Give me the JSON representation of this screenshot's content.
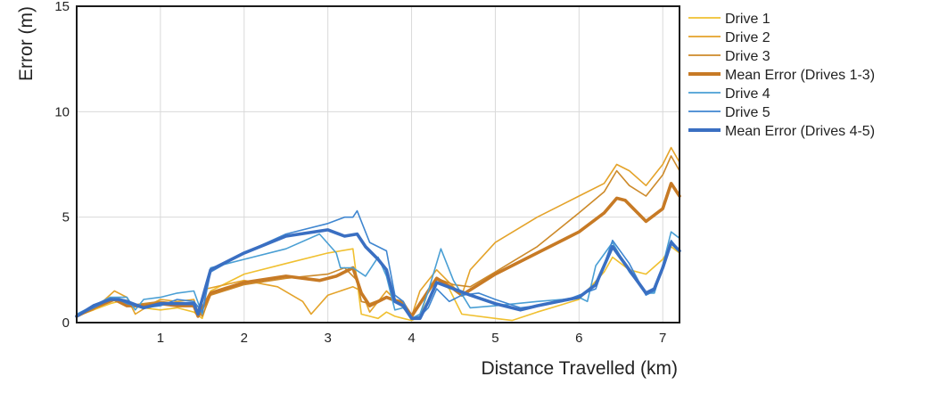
{
  "chart_data": {
    "type": "line",
    "title": "",
    "xlabel": "Distance Travelled (km)",
    "ylabel": "Error (m)",
    "xlim": [
      0,
      7.2
    ],
    "ylim": [
      0,
      15
    ],
    "xticks": [
      1,
      2,
      3,
      4,
      5,
      6,
      7
    ],
    "yticks": [
      0,
      5,
      10,
      15
    ],
    "grid": true,
    "legend_position": "right",
    "series": [
      {
        "name": "Drive 1",
        "color": "#f0c030",
        "line_width": "thin",
        "x": [
          0,
          0.2,
          0.4,
          0.5,
          0.6,
          0.8,
          1.0,
          1.2,
          1.4,
          1.5,
          1.6,
          2.0,
          2.5,
          3.0,
          3.3,
          3.4,
          3.5,
          3.6,
          3.7,
          3.8,
          3.9,
          4.0,
          4.1,
          4.2,
          4.3,
          4.45,
          4.6,
          5.0,
          5.2,
          5.5,
          6.0,
          6.3,
          6.4,
          6.6,
          6.8,
          7.0,
          7.1,
          7.2
        ],
        "y": [
          0.3,
          0.6,
          0.9,
          1.0,
          0.8,
          0.7,
          0.6,
          0.7,
          0.5,
          0.2,
          1.5,
          2.3,
          2.8,
          3.3,
          3.5,
          0.4,
          0.3,
          0.2,
          0.5,
          0.3,
          0.2,
          0.1,
          0.3,
          1.5,
          2.1,
          1.6,
          0.4,
          0.2,
          0.1,
          0.5,
          1.1,
          2.4,
          3.1,
          2.5,
          2.3,
          3.0,
          3.6,
          3.3
        ]
      },
      {
        "name": "Drive 2",
        "color": "#e4a32a",
        "line_width": "thin",
        "x": [
          0,
          0.2,
          0.45,
          0.6,
          0.7,
          0.9,
          1.0,
          1.2,
          1.4,
          1.45,
          1.55,
          2.0,
          2.4,
          2.7,
          2.8,
          3.0,
          3.3,
          3.4,
          3.45,
          3.5,
          3.7,
          4.0,
          4.1,
          4.3,
          4.5,
          4.6,
          4.7,
          5.0,
          5.5,
          6.0,
          6.3,
          6.45,
          6.6,
          6.8,
          7.0,
          7.1,
          7.2
        ],
        "y": [
          0.3,
          0.6,
          1.5,
          1.2,
          0.4,
          0.9,
          1.1,
          1.0,
          1.1,
          0.5,
          1.6,
          2.0,
          1.7,
          1.0,
          0.4,
          1.3,
          1.7,
          1.5,
          1.0,
          0.5,
          1.5,
          0.3,
          1.5,
          2.5,
          1.7,
          1.3,
          2.5,
          3.8,
          5.0,
          6.0,
          6.6,
          7.5,
          7.2,
          6.5,
          7.5,
          8.3,
          7.6
        ]
      },
      {
        "name": "Drive 3",
        "color": "#cd8a2a",
        "line_width": "thin",
        "x": [
          0,
          0.2,
          0.4,
          0.6,
          0.8,
          1.0,
          1.2,
          1.4,
          1.5,
          1.6,
          2.0,
          2.5,
          3.0,
          3.2,
          3.3,
          3.35,
          3.4,
          3.5,
          3.7,
          3.9,
          4.0,
          4.2,
          4.3,
          4.5,
          4.7,
          5.0,
          5.5,
          6.0,
          6.3,
          6.45,
          6.6,
          6.8,
          7.0,
          7.1,
          7.2
        ],
        "y": [
          0.3,
          0.8,
          1.2,
          0.8,
          0.9,
          1.0,
          0.9,
          0.8,
          0.3,
          1.3,
          1.8,
          2.1,
          2.3,
          2.6,
          2.2,
          2.0,
          1.0,
          0.9,
          1.2,
          1.0,
          0.3,
          1.5,
          2.1,
          1.8,
          1.7,
          2.4,
          3.6,
          5.2,
          6.2,
          7.2,
          6.5,
          6.0,
          7.0,
          7.9,
          7.2
        ]
      },
      {
        "name": "Mean Error (Drives 1-3)",
        "color": "#c77a25",
        "line_width": "thick",
        "x": [
          0,
          0.2,
          0.45,
          0.6,
          0.8,
          1.0,
          1.2,
          1.4,
          1.45,
          1.6,
          2.0,
          2.5,
          2.9,
          3.1,
          3.3,
          3.4,
          3.5,
          3.7,
          3.9,
          4.0,
          4.2,
          4.3,
          4.5,
          4.6,
          5.0,
          5.5,
          6.0,
          6.3,
          6.45,
          6.55,
          6.8,
          7.0,
          7.1,
          7.2
        ],
        "y": [
          0.3,
          0.7,
          1.1,
          0.8,
          0.8,
          0.9,
          0.8,
          0.8,
          0.3,
          1.4,
          1.9,
          2.2,
          2.0,
          2.2,
          2.6,
          1.4,
          0.8,
          1.2,
          0.9,
          0.3,
          1.5,
          2.1,
          1.6,
          1.3,
          2.3,
          3.3,
          4.3,
          5.2,
          5.9,
          5.8,
          4.8,
          5.4,
          6.6,
          6.0
        ]
      },
      {
        "name": "Drive 4",
        "color": "#4a9fd4",
        "line_width": "thin",
        "x": [
          0,
          0.2,
          0.4,
          0.6,
          0.7,
          0.8,
          1.0,
          1.2,
          1.4,
          1.5,
          1.6,
          2.0,
          2.5,
          2.9,
          3.1,
          3.15,
          3.3,
          3.45,
          3.6,
          3.7,
          3.8,
          3.9,
          4.0,
          4.1,
          4.2,
          4.35,
          4.5,
          4.7,
          5.0,
          5.5,
          5.8,
          6.0,
          6.1,
          6.2,
          6.4,
          6.6,
          6.8,
          6.9,
          7.0,
          7.1,
          7.2
        ],
        "y": [
          0.4,
          0.8,
          1.2,
          1.2,
          0.6,
          1.1,
          1.2,
          1.4,
          1.5,
          0.4,
          2.6,
          3.0,
          3.5,
          4.2,
          3.3,
          2.6,
          2.6,
          2.2,
          3.1,
          2.2,
          0.6,
          0.7,
          0.2,
          0.4,
          1.5,
          3.5,
          2.0,
          0.7,
          0.8,
          1.0,
          1.1,
          1.2,
          1.0,
          2.7,
          3.8,
          2.4,
          1.4,
          1.4,
          2.7,
          4.3,
          4.0
        ]
      },
      {
        "name": "Drive 5",
        "color": "#3f86d0",
        "line_width": "thin",
        "x": [
          0,
          0.2,
          0.4,
          0.5,
          0.6,
          0.8,
          1.0,
          1.2,
          1.4,
          1.5,
          1.6,
          2.0,
          2.5,
          3.0,
          3.2,
          3.3,
          3.35,
          3.5,
          3.7,
          3.8,
          3.9,
          4.0,
          4.1,
          4.2,
          4.3,
          4.45,
          4.6,
          4.8,
          5.0,
          5.3,
          5.5,
          5.8,
          6.0,
          6.2,
          6.4,
          6.6,
          6.8,
          6.9,
          7.0,
          7.1,
          7.2
        ],
        "y": [
          0.3,
          0.7,
          1.1,
          1.1,
          0.9,
          0.7,
          0.8,
          1.1,
          1.0,
          0.5,
          2.4,
          3.3,
          4.2,
          4.7,
          5.0,
          5.0,
          5.3,
          3.8,
          3.4,
          1.3,
          1.0,
          0.2,
          0.3,
          0.7,
          1.6,
          1.0,
          1.3,
          1.4,
          1.1,
          0.7,
          0.8,
          1.0,
          1.3,
          1.6,
          3.9,
          2.8,
          1.3,
          1.5,
          2.7,
          3.9,
          3.4
        ]
      },
      {
        "name": "Mean Error (Drives 4-5)",
        "color": "#3a6fc2",
        "line_width": "thick",
        "x": [
          0,
          0.2,
          0.4,
          0.5,
          0.6,
          0.8,
          1.0,
          1.2,
          1.4,
          1.45,
          1.6,
          2.0,
          2.5,
          3.0,
          3.2,
          3.35,
          3.45,
          3.6,
          3.7,
          3.8,
          3.9,
          4.0,
          4.1,
          4.2,
          4.3,
          4.5,
          4.7,
          5.0,
          5.3,
          5.5,
          6.0,
          6.2,
          6.4,
          6.6,
          6.8,
          6.9,
          7.0,
          7.1,
          7.2
        ],
        "y": [
          0.3,
          0.8,
          1.1,
          1.1,
          1.0,
          0.7,
          0.9,
          0.9,
          0.9,
          0.4,
          2.5,
          3.3,
          4.1,
          4.4,
          4.1,
          4.2,
          3.6,
          3.0,
          2.5,
          1.0,
          0.8,
          0.2,
          0.2,
          1.0,
          1.9,
          1.6,
          1.3,
          0.9,
          0.6,
          0.8,
          1.2,
          1.8,
          3.6,
          2.5,
          1.4,
          1.6,
          2.6,
          3.8,
          3.4
        ]
      }
    ]
  }
}
